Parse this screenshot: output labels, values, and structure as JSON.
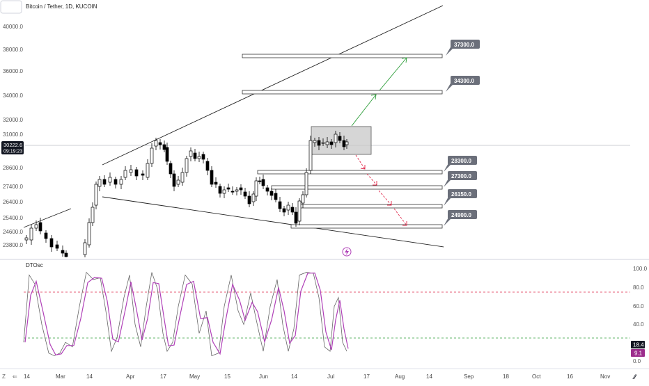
{
  "header": {
    "symbol_title": "Bitcoin / Tether, 1D, KUCOIN"
  },
  "price_pane": {
    "current_price": "30222.6",
    "countdown": "09:19:23",
    "y_ticks": [
      "40000.0",
      "38000.0",
      "36000.0",
      "34000.0",
      "32000.0",
      "31000.0",
      "28600.0",
      "27400.0",
      "26400.0",
      "25400.0",
      "24600.0",
      "23800.0"
    ],
    "levels": [
      {
        "label": "37300.0",
        "value": 37300
      },
      {
        "label": "34300.0",
        "value": 34300
      },
      {
        "label": "28300.0",
        "value": 28300
      },
      {
        "label": "27300.0",
        "value": 27300
      },
      {
        "label": "26150.0",
        "value": 26150
      },
      {
        "label": "24900.0",
        "value": 24900
      }
    ]
  },
  "oscillator": {
    "name": "DTOsc",
    "y_ticks": [
      "100.0",
      "80.0",
      "60.0",
      "40.0",
      "0.0"
    ],
    "value_1": "18.4",
    "value_2": "9.1"
  },
  "x_axis": {
    "ticks": [
      "14",
      "Mar",
      "14",
      "Apr",
      "17",
      "May",
      "15",
      "Jun",
      "14",
      "Jul",
      "17",
      "Aug",
      "14",
      "Sep",
      "18",
      "Oct",
      "16",
      "Nov"
    ]
  },
  "colors": {
    "up_candle": "#ffffff",
    "down_candle": "#000000",
    "green_arrow": "#2e9e3a",
    "red_arrow": "#e0284a",
    "osc_fast": "#666666",
    "osc_slow": "#b040b8",
    "overbought_line": "#e0284a",
    "oversold_line": "#2e9e3a",
    "label_bg": "#6b6f7a"
  },
  "chart_data": {
    "type": "candlestick",
    "title": "Bitcoin / Tether, 1D, KUCOIN",
    "x_labels": [
      "14",
      "Mar",
      "14",
      "Apr",
      "17",
      "May",
      "15",
      "Jun",
      "14",
      "Jul",
      "17",
      "Aug",
      "14",
      "Sep",
      "18",
      "Oct",
      "16",
      "Nov"
    ],
    "price_ticks": [
      40000,
      38000,
      36000,
      34000,
      32000,
      31000,
      28600,
      27400,
      26400,
      25400,
      24600,
      23800
    ],
    "last_price": 30222.6,
    "target_levels_up": [
      34300,
      37300
    ],
    "target_levels_down": [
      28300,
      27300,
      26150,
      24900
    ],
    "oscillator": {
      "name": "DTOsc",
      "ticks": [
        100,
        80,
        60,
        40,
        0
      ],
      "overbought": 75,
      "oversold": 25,
      "last_values": [
        18.4,
        9.1
      ]
    }
  }
}
